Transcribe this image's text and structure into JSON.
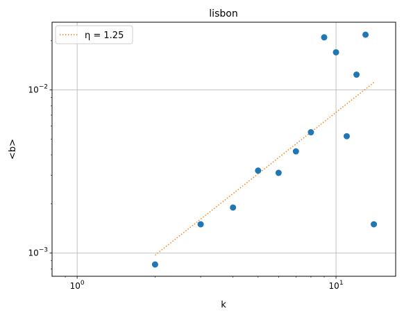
{
  "chart_data": {
    "type": "scatter",
    "title": "lisbon",
    "xlabel": "k",
    "ylabel": "<b>",
    "xscale": "log",
    "yscale": "log",
    "xlim": [
      0.8,
      17
    ],
    "ylim": [
      0.00072,
      0.026
    ],
    "grid": true,
    "legend_position": "top-left",
    "x_ticks": [
      {
        "value": 1,
        "base": "10",
        "exp": "0"
      },
      {
        "value": 10,
        "base": "10",
        "exp": "1"
      }
    ],
    "y_ticks": [
      {
        "value": 0.001,
        "base": "10",
        "exp": "−3"
      },
      {
        "value": 0.01,
        "base": "10",
        "exp": "−2"
      }
    ],
    "series": [
      {
        "kind": "scatter",
        "color": "#1f77b4",
        "points": [
          {
            "x": 2,
            "y": 0.00085
          },
          {
            "x": 3,
            "y": 0.0015
          },
          {
            "x": 4,
            "y": 0.0019
          },
          {
            "x": 5,
            "y": 0.0032
          },
          {
            "x": 6,
            "y": 0.0031
          },
          {
            "x": 7,
            "y": 0.0042
          },
          {
            "x": 8,
            "y": 0.0055
          },
          {
            "x": 9,
            "y": 0.021
          },
          {
            "x": 10,
            "y": 0.017
          },
          {
            "x": 11,
            "y": 0.0052
          },
          {
            "x": 12,
            "y": 0.0124
          },
          {
            "x": 13,
            "y": 0.0218
          },
          {
            "x": 14,
            "y": 0.0015
          }
        ]
      },
      {
        "kind": "line",
        "name": "η = 1.25",
        "color": "#ff7f0e",
        "style": "dotted",
        "x": [
          2,
          14
        ],
        "y": [
          0.00097,
          0.0111
        ]
      }
    ]
  }
}
